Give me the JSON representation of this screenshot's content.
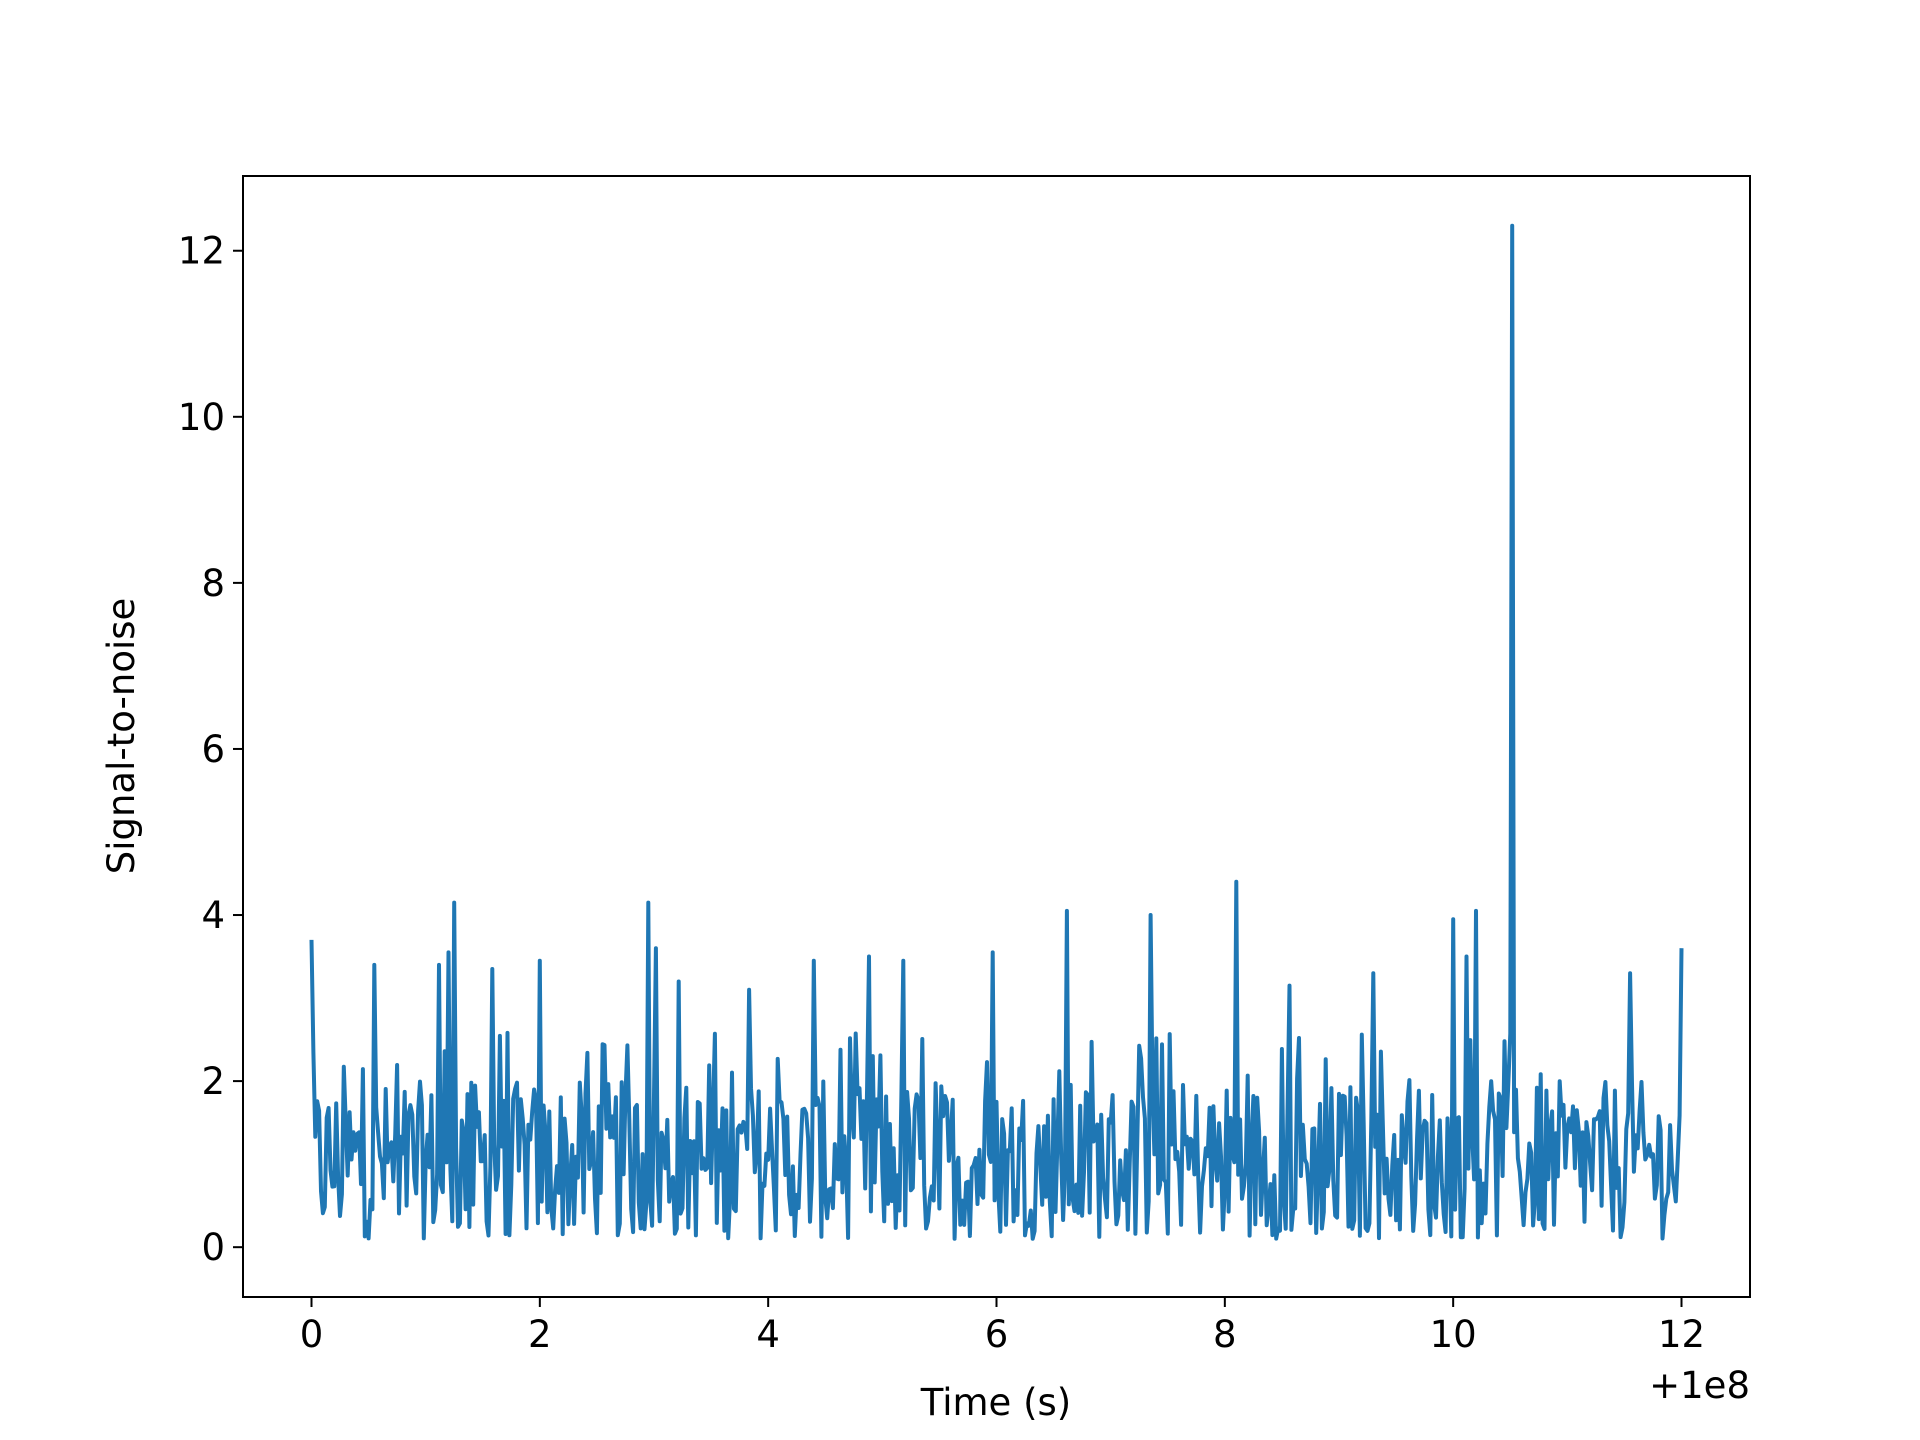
{
  "chart_data": {
    "type": "line",
    "title": "",
    "xlabel": "Time (s)",
    "ylabel": "Signal-to-noise",
    "x_offset_label": "+1e8",
    "xlim": [
      -0.6,
      12.6
    ],
    "ylim": [
      -0.6,
      12.9
    ],
    "xticks": [
      0,
      2,
      4,
      6,
      8,
      10,
      12
    ],
    "yticks": [
      0,
      2,
      4,
      6,
      8,
      10,
      12
    ],
    "grid": false,
    "legend": "none",
    "line_color": "#1f77b4",
    "noise_points_per_second": 60,
    "series": [
      {
        "x_range": [
          0,
          12
        ],
        "baseline_mean": 1.0,
        "baseline_max": 2.6,
        "peaks": [
          {
            "x": 0.0,
            "y": 3.7
          },
          {
            "x": 0.55,
            "y": 3.4
          },
          {
            "x": 1.12,
            "y": 3.4
          },
          {
            "x": 1.2,
            "y": 3.55
          },
          {
            "x": 1.25,
            "y": 4.15
          },
          {
            "x": 1.58,
            "y": 3.35
          },
          {
            "x": 2.0,
            "y": 3.45
          },
          {
            "x": 2.95,
            "y": 4.15
          },
          {
            "x": 3.02,
            "y": 3.6
          },
          {
            "x": 3.22,
            "y": 3.2
          },
          {
            "x": 3.83,
            "y": 3.1
          },
          {
            "x": 4.4,
            "y": 3.45
          },
          {
            "x": 4.88,
            "y": 3.5
          },
          {
            "x": 5.18,
            "y": 3.45
          },
          {
            "x": 5.97,
            "y": 3.55
          },
          {
            "x": 6.62,
            "y": 4.05
          },
          {
            "x": 7.35,
            "y": 4.0
          },
          {
            "x": 8.1,
            "y": 4.4
          },
          {
            "x": 8.57,
            "y": 3.15
          },
          {
            "x": 9.3,
            "y": 3.3
          },
          {
            "x": 10.0,
            "y": 3.95
          },
          {
            "x": 10.12,
            "y": 3.5
          },
          {
            "x": 10.2,
            "y": 4.05
          },
          {
            "x": 10.52,
            "y": 12.3
          },
          {
            "x": 11.55,
            "y": 3.3
          },
          {
            "x": 12.0,
            "y": 3.6
          }
        ]
      }
    ]
  }
}
